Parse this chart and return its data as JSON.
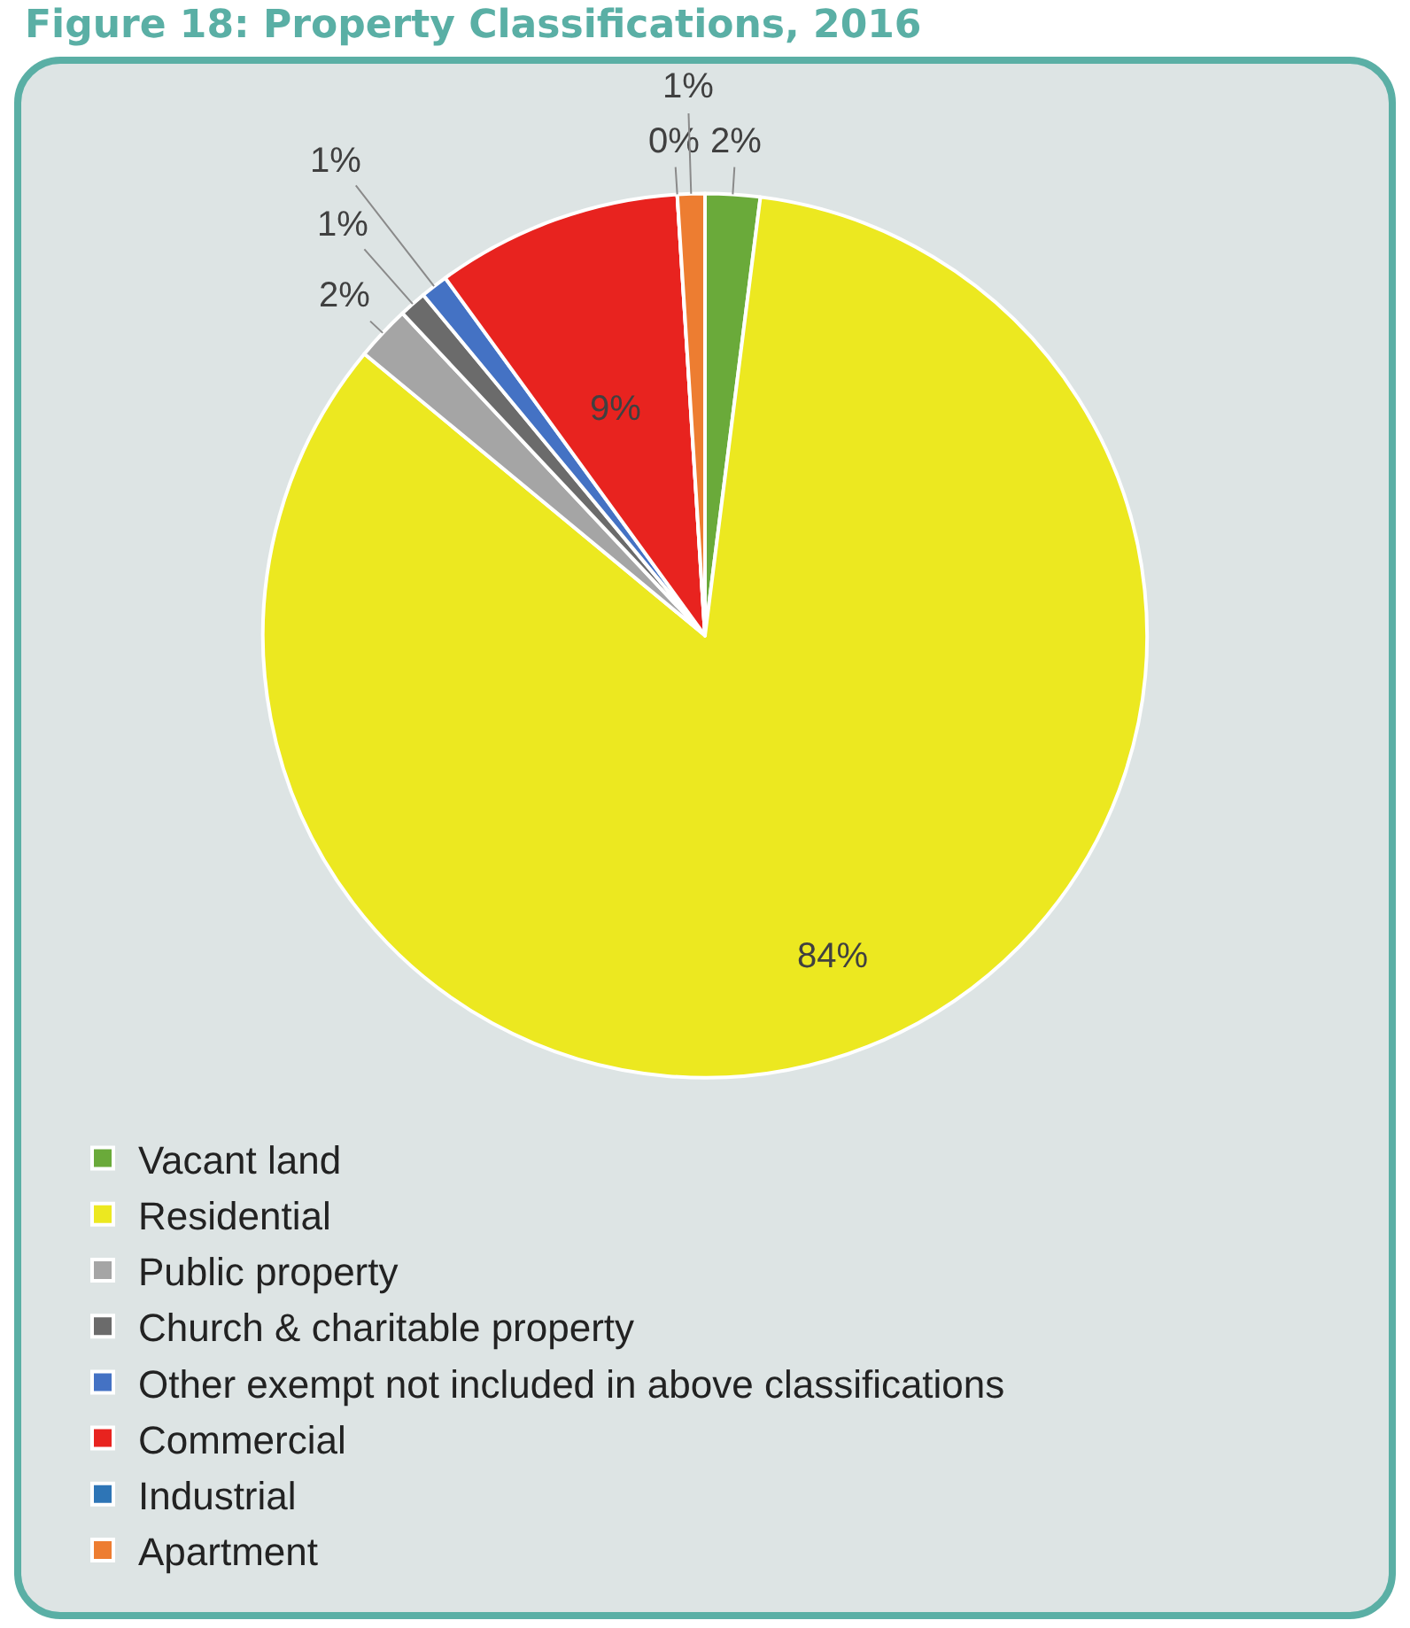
{
  "chart_data": {
    "type": "pie",
    "title": "Figure 18: Property Classifications, 2016",
    "categories": [
      "Vacant land",
      "Residential",
      "Public property",
      "Church & charitable property",
      "Other exempt not included in above classifications",
      "Commercial",
      "Industrial",
      "Apartment"
    ],
    "values": [
      2,
      84,
      2,
      1,
      1,
      9,
      0,
      1
    ],
    "value_labels": [
      "2%",
      "84%",
      "2%",
      "1%",
      "1%",
      "9%",
      "0%",
      "1%"
    ],
    "colors": [
      "#6aaa3a",
      "#ece820",
      "#a5a5a5",
      "#6b6b6b",
      "#4472c4",
      "#e8231f",
      "#2e75b6",
      "#ed7d31"
    ],
    "legend": "bottom left"
  }
}
